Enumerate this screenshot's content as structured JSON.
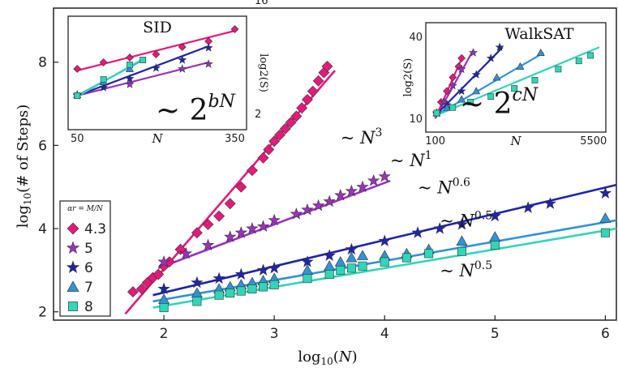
{
  "chart_data": {
    "type": "scatter",
    "main": {
      "xlabel": "log10(N)",
      "ylabel": "log10(# of Steps)",
      "xlim": [
        1.0,
        6.1
      ],
      "ylim": [
        1.8,
        9.3
      ],
      "xticks": [
        "2",
        "3",
        "4",
        "5",
        "6"
      ],
      "yticks": [
        "2",
        "4",
        "6",
        "8"
      ],
      "legend_title": "αr = M/N",
      "legend_position": "lower-left",
      "series": [
        {
          "name": "4.3",
          "color": "#e6197b",
          "marker": "diamond",
          "points": [
            [
              1.72,
              2.48
            ],
            [
              1.8,
              2.55
            ],
            [
              1.85,
              2.7
            ],
            [
              1.9,
              2.82
            ],
            [
              1.95,
              2.9
            ],
            [
              2.0,
              3.1
            ],
            [
              2.05,
              3.2
            ],
            [
              2.15,
              3.5
            ],
            [
              2.3,
              3.9
            ],
            [
              2.4,
              4.1
            ],
            [
              2.5,
              4.3
            ],
            [
              2.6,
              4.6
            ],
            [
              2.7,
              5.0
            ],
            [
              2.8,
              5.4
            ],
            [
              2.9,
              5.7
            ],
            [
              2.95,
              5.9
            ],
            [
              3.0,
              6.1
            ],
            [
              3.05,
              6.25
            ],
            [
              3.1,
              6.4
            ],
            [
              3.15,
              6.55
            ],
            [
              3.2,
              6.7
            ],
            [
              3.25,
              6.9
            ],
            [
              3.3,
              7.1
            ],
            [
              3.35,
              7.3
            ],
            [
              3.4,
              7.55
            ],
            [
              3.45,
              7.75
            ],
            [
              3.48,
              7.9
            ]
          ],
          "fit": [
            [
              1.65,
              1.95
            ],
            [
              3.55,
              7.8
            ]
          ]
        },
        {
          "name": "5",
          "color": "#9d2fc4",
          "marker": "star",
          "points": [
            [
              2.0,
              3.2
            ],
            [
              2.2,
              3.4
            ],
            [
              2.4,
              3.6
            ],
            [
              2.6,
              3.8
            ],
            [
              2.7,
              3.9
            ],
            [
              2.8,
              4.0
            ],
            [
              2.9,
              4.05
            ],
            [
              3.0,
              4.2
            ],
            [
              3.2,
              4.35
            ],
            [
              3.3,
              4.45
            ],
            [
              3.4,
              4.55
            ],
            [
              3.5,
              4.65
            ],
            [
              3.6,
              4.8
            ],
            [
              3.7,
              4.9
            ],
            [
              3.8,
              5.0
            ],
            [
              3.9,
              5.15
            ],
            [
              4.0,
              5.25
            ]
          ],
          "fit": [
            [
              1.95,
              3.05
            ],
            [
              4.05,
              5.15
            ]
          ]
        },
        {
          "name": "6",
          "color": "#1f24b0",
          "marker": "star",
          "points": [
            [
              2.0,
              2.55
            ],
            [
              2.3,
              2.7
            ],
            [
              2.5,
              2.8
            ],
            [
              2.7,
              2.9
            ],
            [
              2.9,
              3.0
            ],
            [
              3.0,
              3.05
            ],
            [
              3.3,
              3.2
            ],
            [
              3.5,
              3.35
            ],
            [
              3.7,
              3.5
            ],
            [
              4.0,
              3.7
            ],
            [
              4.3,
              3.9
            ],
            [
              4.5,
              4.0
            ],
            [
              4.7,
              4.1
            ],
            [
              5.0,
              4.3
            ],
            [
              5.3,
              4.5
            ],
            [
              5.5,
              4.6
            ],
            [
              6.0,
              4.85
            ]
          ],
          "fit": [
            [
              1.9,
              2.4
            ],
            [
              6.1,
              5.05
            ]
          ]
        },
        {
          "name": "7",
          "color": "#2f93d8",
          "marker": "triangle",
          "points": [
            [
              2.0,
              2.3
            ],
            [
              2.3,
              2.45
            ],
            [
              2.5,
              2.55
            ],
            [
              2.6,
              2.6
            ],
            [
              2.7,
              2.65
            ],
            [
              2.8,
              2.7
            ],
            [
              2.9,
              2.75
            ],
            [
              3.0,
              2.8
            ],
            [
              3.3,
              3.0
            ],
            [
              3.5,
              3.1
            ],
            [
              3.6,
              3.2
            ],
            [
              3.7,
              3.3
            ],
            [
              3.8,
              3.35
            ],
            [
              4.0,
              3.35
            ],
            [
              4.2,
              3.4
            ],
            [
              4.4,
              3.5
            ],
            [
              4.7,
              3.7
            ],
            [
              5.0,
              3.8
            ],
            [
              6.0,
              4.25
            ]
          ],
          "fit": [
            [
              1.9,
              2.25
            ],
            [
              6.1,
              4.2
            ]
          ]
        },
        {
          "name": "8",
          "color": "#2fd6b8",
          "marker": "square",
          "points": [
            [
              2.0,
              2.1
            ],
            [
              2.3,
              2.25
            ],
            [
              2.5,
              2.4
            ],
            [
              2.6,
              2.45
            ],
            [
              2.7,
              2.5
            ],
            [
              2.8,
              2.55
            ],
            [
              2.9,
              2.6
            ],
            [
              3.0,
              2.65
            ],
            [
              3.3,
              2.8
            ],
            [
              3.5,
              2.9
            ],
            [
              3.6,
              3.0
            ],
            [
              3.7,
              3.05
            ],
            [
              3.8,
              3.1
            ],
            [
              4.0,
              3.2
            ],
            [
              4.2,
              3.3
            ],
            [
              4.4,
              3.4
            ],
            [
              4.7,
              3.45
            ],
            [
              5.0,
              3.6
            ],
            [
              6.0,
              3.9
            ]
          ],
          "fit": [
            [
              1.9,
              2.1
            ],
            [
              6.1,
              4.0
            ]
          ]
        }
      ],
      "annotations": [
        {
          "base": "~ N",
          "exp": "3",
          "color": "#e6197b",
          "x": 3.6,
          "y": 6.05
        },
        {
          "base": "~ N",
          "exp": "1",
          "color": "#9d2fc4",
          "x": 4.05,
          "y": 5.5
        },
        {
          "base": "~ N",
          "exp": "0.6",
          "color": "#1f24b0",
          "x": 4.3,
          "y": 4.85
        },
        {
          "base": "~ N",
          "exp": "0.5",
          "color": "#2f93d8",
          "x": 4.5,
          "y": 4.05
        },
        {
          "base": "~ N",
          "exp": "0.5",
          "color": "#2fd6b8",
          "x": 4.5,
          "y": 2.85
        }
      ]
    },
    "inset_sid": {
      "title": "SID",
      "xlabel": "N",
      "ylabel": "log2(S)",
      "xticks": [
        "50",
        "350"
      ],
      "yticks": [
        "2",
        "16"
      ],
      "annotation": {
        "base": "~ 2",
        "exp": "bN"
      },
      "lines": [
        {
          "color": "#e6197b",
          "marker": "diamond",
          "pts": [
            [
              50,
              7.5
            ],
            [
              100,
              8.3
            ],
            [
              150,
              8.9
            ],
            [
              200,
              9.3
            ],
            [
              250,
              10.2
            ],
            [
              300,
              10.9
            ],
            [
              350,
              12.4
            ]
          ],
          "fit": [
            [
              50,
              7.3
            ],
            [
              350,
              12.2
            ]
          ]
        },
        {
          "color": "#9d2fc4",
          "marker": "star",
          "pts": [
            [
              50,
              4.2
            ],
            [
              150,
              5.6
            ],
            [
              250,
              7.5
            ],
            [
              300,
              8.1
            ]
          ],
          "fit": [
            [
              50,
              4.2
            ],
            [
              300,
              8.3
            ]
          ]
        },
        {
          "color": "#1f24b0",
          "marker": "star",
          "pts": [
            [
              50,
              4.3
            ],
            [
              100,
              5.2
            ],
            [
              150,
              6.3
            ],
            [
              200,
              7.6
            ],
            [
              250,
              8.6
            ],
            [
              300,
              10.1
            ]
          ],
          "fit": [
            [
              50,
              4.2
            ],
            [
              300,
              10.3
            ]
          ]
        },
        {
          "color": "#2f93d8",
          "marker": "triangle",
          "pts": [
            [
              50,
              4.3
            ],
            [
              100,
              5.9
            ],
            [
              150,
              7.5
            ]
          ],
          "fit": [
            [
              50,
              4.2
            ],
            [
              175,
              8.6
            ]
          ]
        },
        {
          "color": "#2fd6b8",
          "marker": "square",
          "pts": [
            [
              50,
              4.2
            ],
            [
              100,
              6.2
            ],
            [
              150,
              8.0
            ],
            [
              175,
              8.6
            ]
          ],
          "fit": [
            [
              50,
              4.1
            ],
            [
              175,
              8.7
            ]
          ]
        }
      ]
    },
    "inset_walksat": {
      "title": "WalkSAT",
      "xlabel": "N",
      "ylabel": "log2(S)",
      "xticks": [
        "100",
        "5500"
      ],
      "yticks": [
        "10",
        "40"
      ],
      "annotation": {
        "base": "~ 2",
        "exp": "cN"
      },
      "lines": [
        {
          "color": "#e6197b",
          "marker": "diamond",
          "pts": [
            [
              150,
              12
            ],
            [
              300,
              16
            ],
            [
              500,
              20
            ],
            [
              700,
              25
            ],
            [
              900,
              29
            ],
            [
              1000,
              32
            ]
          ],
          "fit": [
            [
              100,
              10
            ],
            [
              1050,
              33
            ]
          ]
        },
        {
          "color": "#9d2fc4",
          "marker": "star",
          "pts": [
            [
              150,
              12
            ],
            [
              400,
              16
            ],
            [
              700,
              22
            ],
            [
              1000,
              28
            ],
            [
              1400,
              34
            ]
          ],
          "fit": [
            [
              100,
              10
            ],
            [
              1400,
              35
            ]
          ]
        },
        {
          "color": "#1f24b0",
          "marker": "star",
          "pts": [
            [
              150,
              12
            ],
            [
              500,
              15
            ],
            [
              1000,
              20
            ],
            [
              1500,
              26
            ],
            [
              2000,
              32
            ],
            [
              2300,
              36
            ]
          ],
          "fit": [
            [
              100,
              11
            ],
            [
              2400,
              36
            ]
          ]
        },
        {
          "color": "#2f93d8",
          "marker": "triangle",
          "pts": [
            [
              150,
              12
            ],
            [
              500,
              14
            ],
            [
              1000,
              17
            ],
            [
              1500,
              20
            ],
            [
              2200,
              25
            ],
            [
              3000,
              29
            ],
            [
              3700,
              34
            ]
          ],
          "fit": [
            [
              100,
              11
            ],
            [
              3800,
              34
            ]
          ]
        },
        {
          "color": "#2fd6b8",
          "marker": "square",
          "pts": [
            [
              150,
              12
            ],
            [
              700,
              14
            ],
            [
              1300,
              16
            ],
            [
              2000,
              18
            ],
            [
              2800,
              21
            ],
            [
              3500,
              24
            ],
            [
              4300,
              28
            ],
            [
              5000,
              31
            ],
            [
              5400,
              33
            ]
          ],
          "fit": [
            [
              100,
              11
            ],
            [
              5700,
              36
            ]
          ]
        }
      ]
    }
  }
}
